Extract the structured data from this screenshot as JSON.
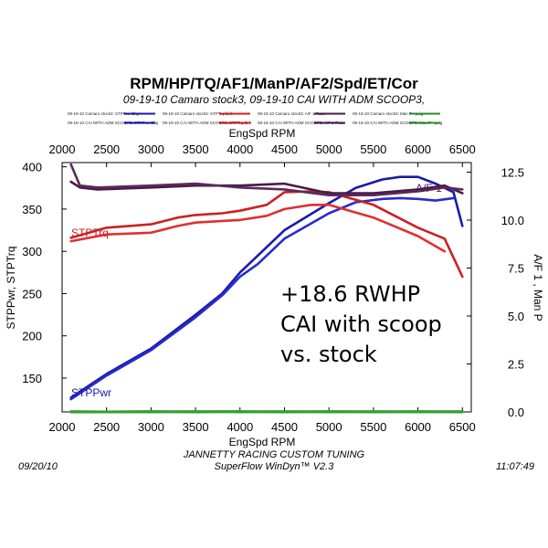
{
  "chart_data": {
    "type": "line",
    "title": "RPM/HP/TQ/AF1/ManP/AF2/Spd/ET/Cor",
    "subtitle": "09-19-10 Camaro stock3, 09-19-10 CAI WITH ADM SCOOP3,",
    "xlabel": "EngSpd  RPM",
    "ylabel": "STPPwr, STPTrq",
    "y2label": "A/F 1 , Man P",
    "xlim": [
      2000,
      6600
    ],
    "ylim": [
      110,
      405
    ],
    "y2lim": [
      0,
      13
    ],
    "x_ticks": [
      "2000",
      "2500",
      "3000",
      "3500",
      "4000",
      "4500",
      "5000",
      "5500",
      "6000",
      "6500"
    ],
    "y_ticks": [
      "150",
      "200",
      "250",
      "300",
      "350",
      "400"
    ],
    "y2_ticks": [
      "0.0",
      "2.5",
      "5.0",
      "7.5",
      "10.0",
      "12.5"
    ],
    "legend": [
      {
        "text": "09-19-10 Camaro stock3: STPPwr-Chp",
        "color": "#1a1aa8"
      },
      {
        "text": "09-19-10 CAI WITH ADM SCOOP3: STPPwr-Chp",
        "color": "#1a1aa8"
      },
      {
        "text": "09-19-10 Camaro stock3: STPTrq-lb-ft",
        "color": "#cc2020"
      },
      {
        "text": "09-19-10 CAI WITH ADM SCOOP3: STPTrq-lb-ft",
        "color": "#cc2020"
      },
      {
        "text": "09-19-10 Camaro stock3: A/F 1-Ratio",
        "color": "#4a1a4a"
      },
      {
        "text": "09-19-10 CAI WITH ADM SCOOP3: A/F 1-Ratio",
        "color": "#4a1a4a"
      },
      {
        "text": "09-19-10 Camaro stock3: Man P - psig",
        "color": "#2a8a2a"
      },
      {
        "text": "09-19-10 CAI WITH ADM SCOOP3: Man P - psig",
        "color": "#2a8a2a"
      }
    ],
    "curve_labels": {
      "power": "STPPwr",
      "torque": "STPTrq",
      "af": "A/F 1"
    },
    "series": [
      {
        "axis": "left",
        "color": "#1a1aa8",
        "x": [
          2100,
          2500,
          3000,
          3500,
          3800,
          4000,
          4200,
          4500,
          5000,
          5300,
          5600,
          5800,
          6000,
          6200,
          6400,
          6500
        ],
        "y": [
          127,
          155,
          185,
          225,
          250,
          275,
          295,
          325,
          357,
          375,
          385,
          388,
          388,
          380,
          370,
          330
        ]
      },
      {
        "axis": "left",
        "color": "#2a2ad0",
        "x": [
          2100,
          2500,
          3000,
          3500,
          3800,
          4000,
          4200,
          4500,
          5000,
          5300,
          5600,
          5800,
          6000,
          6200,
          6400
        ],
        "y": [
          125,
          153,
          183,
          222,
          248,
          270,
          285,
          315,
          345,
          358,
          362,
          363,
          362,
          360,
          363
        ]
      },
      {
        "axis": "left",
        "color": "#cc2020",
        "x": [
          2100,
          2500,
          3000,
          3300,
          3500,
          3800,
          4000,
          4300,
          4500,
          4800,
          5000,
          5500,
          6000,
          6300,
          6500
        ],
        "y": [
          316,
          328,
          332,
          340,
          343,
          345,
          348,
          355,
          370,
          371,
          370,
          355,
          328,
          315,
          270
        ]
      },
      {
        "axis": "left",
        "color": "#e03030",
        "x": [
          2100,
          2500,
          3000,
          3300,
          3500,
          3800,
          4000,
          4300,
          4500,
          4800,
          5000,
          5500,
          6000,
          6300
        ],
        "y": [
          312,
          320,
          322,
          330,
          334,
          336,
          337,
          342,
          350,
          355,
          355,
          340,
          318,
          300
        ]
      },
      {
        "axis": "right",
        "color": "#4a1a4a",
        "x": [
          2100,
          2200,
          2400,
          3000,
          3500,
          4000,
          4500,
          5000,
          5500,
          6000,
          6300,
          6500
        ],
        "y": [
          12.0,
          11.7,
          11.6,
          11.7,
          11.8,
          11.8,
          11.9,
          11.4,
          11.4,
          11.6,
          11.8,
          11.4
        ]
      },
      {
        "axis": "right",
        "color": "#5a2a5a",
        "x": [
          2100,
          2200,
          2400,
          3000,
          3500,
          4000,
          4500,
          5000,
          5500,
          6000,
          6300,
          6500
        ],
        "y": [
          12.9,
          11.8,
          11.7,
          11.8,
          11.9,
          11.7,
          11.6,
          11.3,
          11.3,
          11.5,
          11.7,
          11.6
        ]
      },
      {
        "axis": "right",
        "color": "#2a8a2a",
        "x": [
          2100,
          2500,
          3000,
          3500,
          4000,
          4500,
          5000,
          5500,
          6000,
          6500
        ],
        "y": [
          0.0,
          0.0,
          0.02,
          0.0,
          0.02,
          0.0,
          0.02,
          0.0,
          0.02,
          0.0
        ]
      },
      {
        "axis": "right",
        "color": "#33a033",
        "x": [
          2100,
          2500,
          3000,
          3500,
          4000,
          4500,
          5000,
          5500,
          6000,
          6500
        ],
        "y": [
          0.02,
          0.0,
          0.0,
          0.02,
          0.0,
          0.02,
          0.0,
          0.02,
          0.0,
          0.02
        ]
      }
    ]
  },
  "annotation": [
    "+18.6 RWHP",
    "CAI with scoop",
    "vs. stock"
  ],
  "footer": {
    "date": "09/20/10",
    "company": "JANNETTY RACING CUSTOM TUNING",
    "software": "SuperFlow WinDyn™ V2.3",
    "time": "11:07:49"
  }
}
